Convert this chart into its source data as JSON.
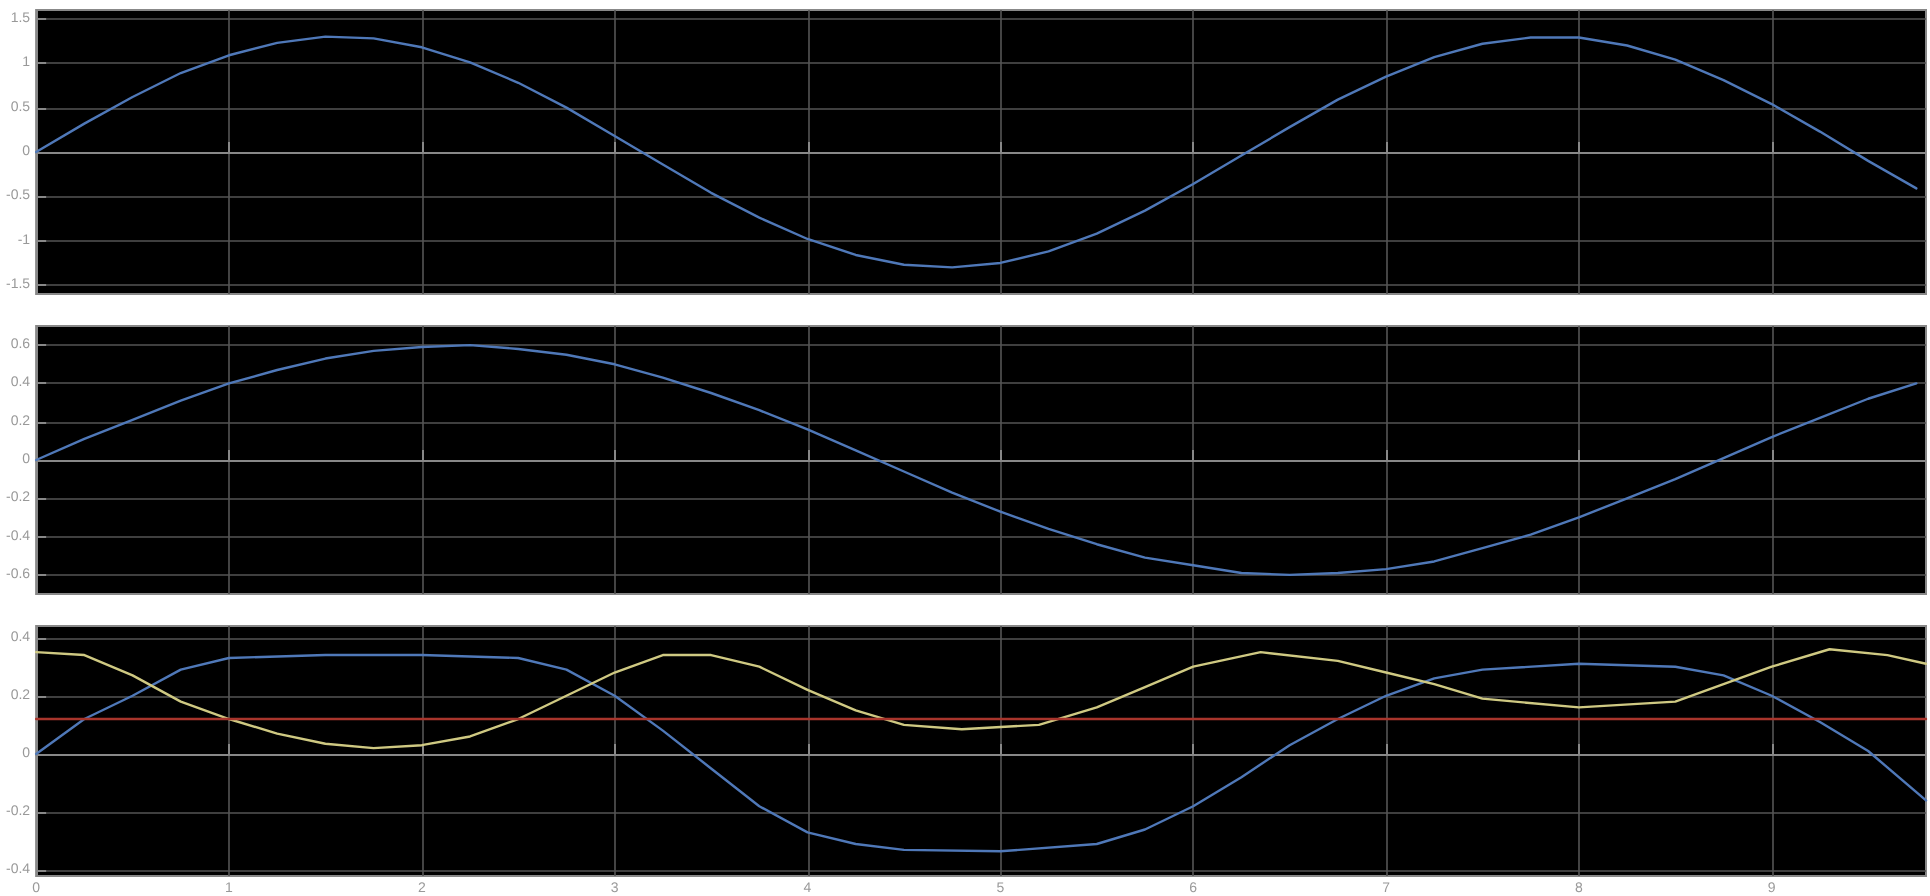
{
  "chart_data": [
    {
      "type": "line",
      "grid": true,
      "marker": "none",
      "line_style": "solid",
      "tick_labels": "y",
      "xlim": [
        0,
        9.8
      ],
      "xticks": [
        0,
        1,
        2,
        3,
        4,
        5,
        6,
        7,
        8,
        9
      ],
      "ylim": [
        -1.6,
        1.6
      ],
      "yticks": [
        -1.5,
        -1,
        -0.5,
        0,
        0.5,
        1,
        1.5
      ],
      "series": [
        {
          "color": "#4f78b8",
          "x": [
            0,
            0.25,
            0.5,
            0.75,
            1,
            1.25,
            1.5,
            1.75,
            2,
            2.25,
            2.5,
            2.75,
            3,
            3.25,
            3.5,
            3.75,
            4,
            4.25,
            4.5,
            4.75,
            5,
            5.25,
            5.5,
            5.75,
            6,
            6.25,
            6.5,
            6.75,
            7,
            7.25,
            7.5,
            7.75,
            8,
            8.25,
            8.5,
            8.75,
            9,
            9.25,
            9.5,
            9.75
          ],
          "values": [
            0,
            0.32,
            0.62,
            0.89,
            1.09,
            1.23,
            1.3,
            1.28,
            1.18,
            1.01,
            0.78,
            0.5,
            0.18,
            -0.14,
            -0.46,
            -0.74,
            -0.98,
            -1.16,
            -1.27,
            -1.3,
            -1.25,
            -1.12,
            -0.92,
            -0.66,
            -0.36,
            -0.04,
            0.28,
            0.59,
            0.85,
            1.07,
            1.22,
            1.29,
            1.29,
            1.2,
            1.04,
            0.81,
            0.54,
            0.23,
            -0.1,
            -0.41
          ]
        }
      ]
    },
    {
      "type": "line",
      "grid": true,
      "marker": "none",
      "line_style": "solid",
      "tick_labels": "y",
      "xlim": [
        0,
        9.8
      ],
      "xticks": [
        0,
        1,
        2,
        3,
        4,
        5,
        6,
        7,
        8,
        9
      ],
      "ylim": [
        -0.7,
        0.7
      ],
      "yticks": [
        -0.6,
        -0.4,
        -0.2,
        0,
        0.2,
        0.4,
        0.6
      ],
      "series": [
        {
          "color": "#4f78b8",
          "x": [
            0,
            0.25,
            0.5,
            0.75,
            1,
            1.25,
            1.5,
            1.75,
            2,
            2.25,
            2.5,
            2.75,
            3,
            3.25,
            3.5,
            3.75,
            4,
            4.25,
            4.5,
            4.75,
            5,
            5.25,
            5.5,
            5.75,
            6,
            6.25,
            6.5,
            6.75,
            7,
            7.25,
            7.5,
            7.75,
            8,
            8.25,
            8.5,
            8.75,
            9,
            9.25,
            9.5,
            9.75
          ],
          "values": [
            0,
            0.11,
            0.21,
            0.31,
            0.4,
            0.47,
            0.53,
            0.57,
            0.59,
            0.6,
            0.58,
            0.55,
            0.5,
            0.43,
            0.35,
            0.26,
            0.16,
            0.05,
            -0.06,
            -0.17,
            -0.27,
            -0.36,
            -0.44,
            -0.51,
            -0.55,
            -0.59,
            -0.6,
            -0.59,
            -0.57,
            -0.53,
            -0.46,
            -0.39,
            -0.3,
            -0.2,
            -0.1,
            0.01,
            0.12,
            0.22,
            0.32,
            0.4
          ]
        }
      ]
    },
    {
      "type": "line",
      "grid": true,
      "marker": "none",
      "line_style": "solid",
      "xlim": [
        0,
        9.8
      ],
      "xticks": [
        0,
        1,
        2,
        3,
        4,
        5,
        6,
        7,
        8,
        9
      ],
      "ylim": [
        -0.42,
        0.44
      ],
      "yticks": [
        -0.4,
        -0.2,
        0,
        0.2,
        0.4
      ],
      "series": [
        {
          "color": "#4f78b8",
          "x": [
            0,
            0.25,
            0.5,
            0.75,
            1,
            1.5,
            2,
            2.5,
            2.75,
            3,
            3.25,
            3.5,
            3.75,
            4,
            4.25,
            4.5,
            5,
            5.5,
            5.75,
            6,
            6.25,
            6.5,
            6.75,
            7,
            7.25,
            7.5,
            8,
            8.5,
            8.75,
            9,
            9.25,
            9.5,
            9.8
          ],
          "values": [
            0,
            0.12,
            0.2,
            0.29,
            0.33,
            0.34,
            0.34,
            0.33,
            0.29,
            0.2,
            0.08,
            -0.05,
            -0.18,
            -0.27,
            -0.31,
            -0.33,
            -0.335,
            -0.31,
            -0.26,
            -0.18,
            -0.08,
            0.03,
            0.12,
            0.2,
            0.26,
            0.29,
            0.31,
            0.3,
            0.27,
            0.2,
            0.11,
            0.01,
            -0.16
          ]
        },
        {
          "color": "#cfc982",
          "x": [
            0,
            0.25,
            0.5,
            0.75,
            1,
            1.25,
            1.5,
            1.75,
            2,
            2.25,
            2.5,
            2.75,
            3,
            3.25,
            3.5,
            3.75,
            4,
            4.25,
            4.5,
            4.8,
            5.2,
            5.5,
            5.75,
            6,
            6.35,
            6.75,
            7,
            7.25,
            7.5,
            8,
            8.5,
            9,
            9.3,
            9.6,
            9.8
          ],
          "values": [
            0.35,
            0.34,
            0.27,
            0.18,
            0.12,
            0.07,
            0.035,
            0.02,
            0.03,
            0.06,
            0.12,
            0.2,
            0.28,
            0.34,
            0.34,
            0.3,
            0.22,
            0.15,
            0.1,
            0.085,
            0.1,
            0.16,
            0.23,
            0.3,
            0.35,
            0.32,
            0.28,
            0.24,
            0.19,
            0.16,
            0.18,
            0.3,
            0.36,
            0.34,
            0.31
          ]
        },
        {
          "color": "#a8352c",
          "x": [
            0,
            9.8
          ],
          "values": [
            0.12,
            0.12
          ]
        }
      ]
    }
  ]
}
